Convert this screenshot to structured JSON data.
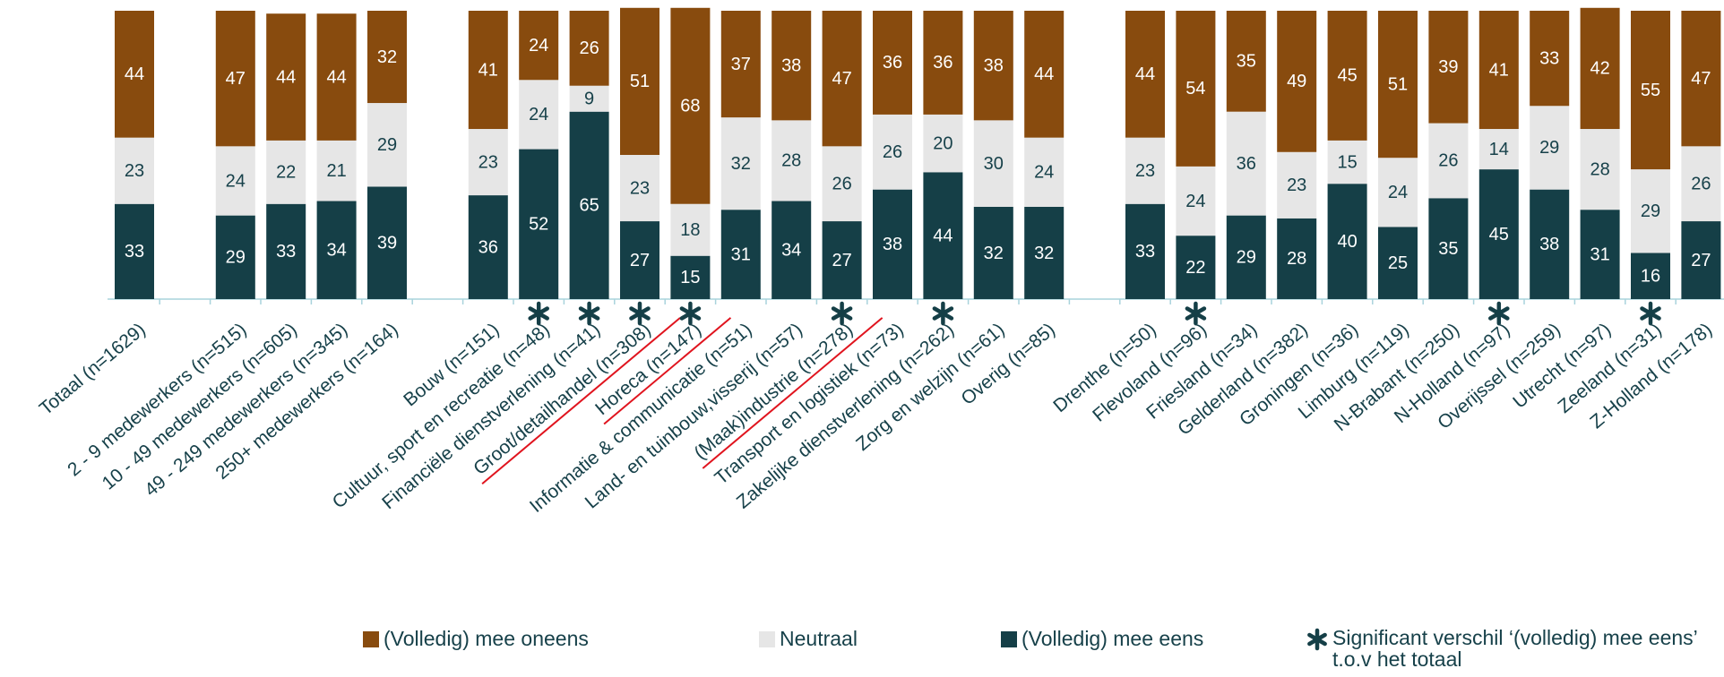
{
  "chart_data": {
    "type": "stacked_bar",
    "categories": [
      "Totaal (n=1629)",
      null,
      "2 - 9 medewerkers (n=515)",
      "10 - 49 medewerkers (n=605)",
      "49 - 249 medewerkers (n=345)",
      "250+ medewerkers (n=164)",
      null,
      "Bouw (n=151)",
      "Cultuur, sport en recreatie (n=48)",
      "Financiële dienstverlening (n=41)",
      "Groot/detailhandel (n=308)",
      "Horeca (n=147)",
      "Informatie & communicatie (n=51)",
      "Land- en tuinbouw,visserij (n=57)",
      "(Maak)industrie (n=278)",
      "Transport en logistiek (n=73)",
      "Zakelijke dienstverlening (n=262)",
      "Zorg en welzijn (n=61)",
      "Overig (n=85)",
      null,
      "Drenthe (n=50)",
      "Flevoland (n=96)",
      "Friesland (n=34)",
      "Gelderland (n=382)",
      "Groningen (n=36)",
      "Limburg (n=119)",
      "N-Brabant (n=250)",
      "N-Holland (n=97)",
      "Overijssel (n=259)",
      "Utrecht (n=97)",
      "Zeeland (n=31)",
      "Z-Holland (n=178)"
    ],
    "series": [
      {
        "name": "(Volledig) mee eens",
        "color": "#153f47",
        "values": [
          33,
          null,
          29,
          33,
          34,
          39,
          null,
          36,
          52,
          65,
          27,
          15,
          31,
          34,
          27,
          38,
          44,
          32,
          32,
          null,
          33,
          22,
          29,
          28,
          40,
          25,
          35,
          45,
          38,
          31,
          16,
          27
        ]
      },
      {
        "name": "Neutraal",
        "color": "#e6e6e6",
        "values": [
          23,
          null,
          24,
          22,
          21,
          29,
          null,
          23,
          24,
          9,
          23,
          18,
          32,
          28,
          26,
          26,
          20,
          30,
          24,
          null,
          23,
          24,
          36,
          23,
          15,
          24,
          26,
          14,
          29,
          28,
          29,
          26
        ]
      },
      {
        "name": "(Volledig) mee oneens",
        "color": "#884b0e",
        "values": [
          44,
          null,
          47,
          44,
          44,
          32,
          null,
          41,
          24,
          26,
          51,
          68,
          37,
          38,
          47,
          36,
          36,
          38,
          44,
          null,
          44,
          54,
          35,
          49,
          45,
          51,
          39,
          41,
          33,
          42,
          55,
          47
        ]
      }
    ],
    "significant": [
      false,
      false,
      false,
      false,
      false,
      false,
      false,
      false,
      true,
      true,
      true,
      true,
      false,
      false,
      true,
      false,
      true,
      false,
      false,
      false,
      false,
      true,
      false,
      false,
      false,
      false,
      false,
      true,
      false,
      false,
      true,
      false
    ],
    "highlighted": [
      false,
      false,
      false,
      false,
      false,
      false,
      false,
      false,
      false,
      false,
      true,
      true,
      false,
      false,
      true,
      false,
      false,
      false,
      false,
      false,
      false,
      false,
      false,
      false,
      false,
      false,
      false,
      false,
      false,
      false,
      false,
      false
    ],
    "significant_label": "Significant verschil ‘(volledig) mee eens’ t.o.v het totaal",
    "ylim": [
      0,
      100
    ]
  }
}
